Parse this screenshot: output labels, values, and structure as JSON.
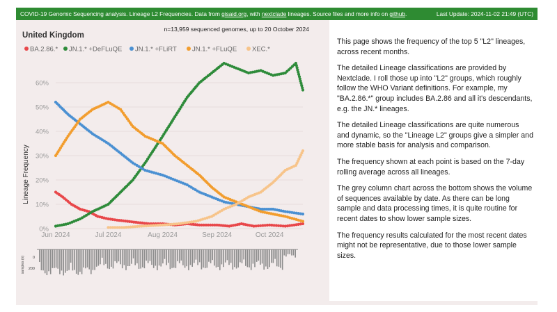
{
  "header": {
    "prefix": "COVID-19 Genomic Sequencing analysis. Lineage L2 Frequencies. Data from ",
    "link_gisaid": "gisaid.org",
    "mid1": ", with ",
    "link_nextclade": "nextclade",
    "mid2": " lineages. Source files and more info on ",
    "link_github": "github",
    "suffix": ".",
    "last_update": "Last Update: 2024-11-02 21:49 (UTC)"
  },
  "colors": {
    "header_bg": "#2e8b32",
    "panel_bg": "#f3ecec",
    "BA.2.86": "#e8474a",
    "DeFLuQE": "#2e8b3a",
    "FLiRT": "#4a90d2",
    "FLuQE": "#f29d2e",
    "XEC": "#f7c48a",
    "volume_bars": "#8c8c8c"
  },
  "chart_data": {
    "type": "line",
    "title": "United Kingdom",
    "subtitle": "n=13,959 sequenced genomes, up to 20 October 2024",
    "xlabel": "",
    "ylabel": "Lineage Frequency",
    "x_ticks": [
      "Jun 2024",
      "Jul 2024",
      "Aug 2024",
      "Sep 2024",
      "Oct 2024"
    ],
    "y_ticks": [
      "0%",
      "10%",
      "20%",
      "30%",
      "40%",
      "50%",
      "60%"
    ],
    "ylim": [
      0,
      70
    ],
    "x_range": [
      "2024-06-01",
      "2024-10-20"
    ],
    "legend_position": "top",
    "series": [
      {
        "name": "BA.2.86.*",
        "color": "#e8474a",
        "points": [
          [
            "2024-06-01",
            15
          ],
          [
            "2024-06-05",
            13
          ],
          [
            "2024-06-10",
            10
          ],
          [
            "2024-06-15",
            8
          ],
          [
            "2024-06-20",
            7
          ],
          [
            "2024-06-25",
            5
          ],
          [
            "2024-07-01",
            4
          ],
          [
            "2024-07-06",
            3.5
          ],
          [
            "2024-07-12",
            3
          ],
          [
            "2024-07-18",
            2.5
          ],
          [
            "2024-07-24",
            2
          ],
          [
            "2024-08-01",
            2
          ],
          [
            "2024-08-08",
            1.5
          ],
          [
            "2024-08-15",
            2
          ],
          [
            "2024-08-22",
            1.5
          ],
          [
            "2024-09-01",
            1.5
          ],
          [
            "2024-09-08",
            1
          ],
          [
            "2024-09-15",
            2
          ],
          [
            "2024-09-22",
            1
          ],
          [
            "2024-10-01",
            1.5
          ],
          [
            "2024-10-10",
            1
          ],
          [
            "2024-10-20",
            2
          ]
        ]
      },
      {
        "name": "JN.1.* +DeFLuQE",
        "color": "#2e8b3a",
        "points": [
          [
            "2024-06-01",
            1
          ],
          [
            "2024-06-08",
            2
          ],
          [
            "2024-06-15",
            4
          ],
          [
            "2024-06-22",
            7
          ],
          [
            "2024-07-01",
            10
          ],
          [
            "2024-07-08",
            15
          ],
          [
            "2024-07-15",
            20
          ],
          [
            "2024-07-22",
            27
          ],
          [
            "2024-08-01",
            38
          ],
          [
            "2024-08-08",
            46
          ],
          [
            "2024-08-15",
            54
          ],
          [
            "2024-08-22",
            60
          ],
          [
            "2024-08-29",
            64
          ],
          [
            "2024-09-05",
            68
          ],
          [
            "2024-09-12",
            66
          ],
          [
            "2024-09-19",
            64
          ],
          [
            "2024-09-26",
            65
          ],
          [
            "2024-10-03",
            63
          ],
          [
            "2024-10-10",
            64
          ],
          [
            "2024-10-16",
            68
          ],
          [
            "2024-10-20",
            57
          ]
        ]
      },
      {
        "name": "JN.1.* +FLiRT",
        "color": "#4a90d2",
        "points": [
          [
            "2024-06-01",
            52
          ],
          [
            "2024-06-08",
            47
          ],
          [
            "2024-06-15",
            43
          ],
          [
            "2024-06-22",
            39
          ],
          [
            "2024-07-01",
            35
          ],
          [
            "2024-07-08",
            31
          ],
          [
            "2024-07-15",
            27
          ],
          [
            "2024-07-22",
            24
          ],
          [
            "2024-08-01",
            22
          ],
          [
            "2024-08-08",
            20
          ],
          [
            "2024-08-15",
            18
          ],
          [
            "2024-08-22",
            15
          ],
          [
            "2024-08-29",
            13
          ],
          [
            "2024-09-05",
            11
          ],
          [
            "2024-09-12",
            10
          ],
          [
            "2024-09-19",
            9
          ],
          [
            "2024-09-26",
            8
          ],
          [
            "2024-10-03",
            8
          ],
          [
            "2024-10-10",
            7
          ],
          [
            "2024-10-20",
            6
          ]
        ]
      },
      {
        "name": "JN.1.* +FLuQE",
        "color": "#f29d2e",
        "points": [
          [
            "2024-06-01",
            30
          ],
          [
            "2024-06-08",
            38
          ],
          [
            "2024-06-15",
            45
          ],
          [
            "2024-06-22",
            49
          ],
          [
            "2024-07-01",
            52
          ],
          [
            "2024-07-08",
            49
          ],
          [
            "2024-07-15",
            42
          ],
          [
            "2024-07-22",
            38
          ],
          [
            "2024-08-01",
            35
          ],
          [
            "2024-08-08",
            30
          ],
          [
            "2024-08-15",
            26
          ],
          [
            "2024-08-22",
            22
          ],
          [
            "2024-08-29",
            17
          ],
          [
            "2024-09-05",
            13
          ],
          [
            "2024-09-12",
            11
          ],
          [
            "2024-09-19",
            9
          ],
          [
            "2024-09-26",
            7
          ],
          [
            "2024-10-03",
            6
          ],
          [
            "2024-10-10",
            5
          ],
          [
            "2024-10-20",
            3
          ]
        ]
      },
      {
        "name": "XEC.*",
        "color": "#f7c48a",
        "points": [
          [
            "2024-07-01",
            0.5
          ],
          [
            "2024-07-10",
            0.5
          ],
          [
            "2024-07-20",
            1
          ],
          [
            "2024-08-01",
            1.5
          ],
          [
            "2024-08-10",
            2
          ],
          [
            "2024-08-20",
            3
          ],
          [
            "2024-08-29",
            5
          ],
          [
            "2024-09-05",
            8
          ],
          [
            "2024-09-12",
            10
          ],
          [
            "2024-09-19",
            13
          ],
          [
            "2024-09-26",
            15
          ],
          [
            "2024-10-03",
            19
          ],
          [
            "2024-10-10",
            24
          ],
          [
            "2024-10-16",
            26
          ],
          [
            "2024-10-20",
            32
          ]
        ]
      }
    ],
    "volume_chart": {
      "type": "bar",
      "ylabel": "samples (n)",
      "y_ticks": [
        "0",
        "200"
      ],
      "ylim": [
        0,
        300
      ],
      "color": "#8c8c8c"
    }
  },
  "description": {
    "p1": "This page shows the frequency of the top 5 \"L2\" lineages, across recent months.",
    "p2": "The detailed Lineage classifications are provided by Nextclade. I roll those up into \"L2\" groups, which roughly follow the WHO Variant definitions. For example, my \"BA.2.86.*\" group includes BA.2.86 and all it's descendants, e.g. the JN.* lineages.",
    "p3": "The detailed Lineage classifications are quite numerous and dynamic, so the \"Lineage L2\" groups give a simpler and more stable basis for analysis and comparison.",
    "p4": "The frequency shown at each point is based on the 7-day rolling average across all lineages.",
    "p5": "The grey column chart across the bottom shows the volume of sequences available by date.  As there can be long sample and data processing times, it is quite routine for recent dates to show lower sample sizes.",
    "p6": "The frequency results calculated for the most recent dates might not be representative, due to those lower sample sizes."
  }
}
